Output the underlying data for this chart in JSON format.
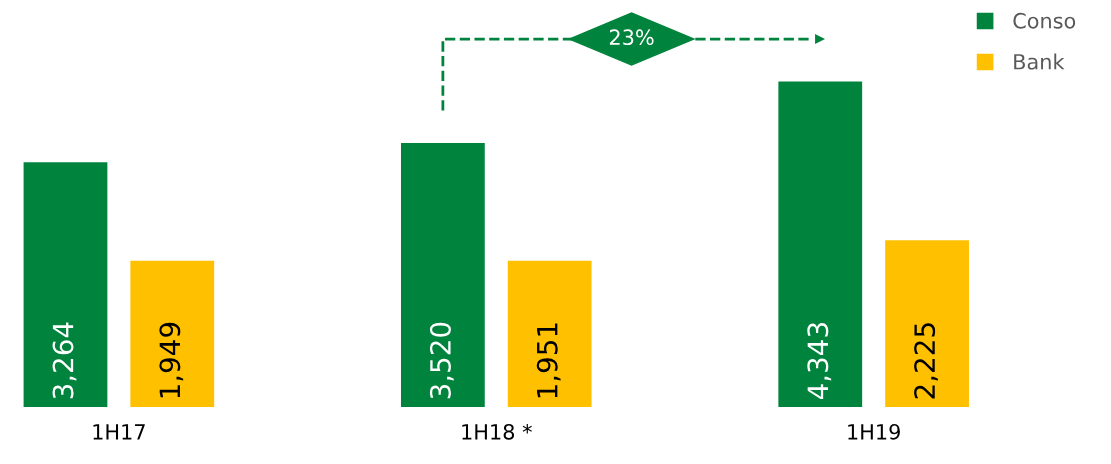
{
  "chart_data": {
    "type": "bar",
    "categories": [
      "1H17",
      "1H18 *",
      "1H19"
    ],
    "series": [
      {
        "name": "Conso",
        "color": "#00843d",
        "values": [
          3264,
          3520,
          4343
        ],
        "value_labels": [
          "3,264",
          "3,520",
          "4,343"
        ]
      },
      {
        "name": "Bank",
        "color": "#ffc000",
        "values": [
          1949,
          1951,
          2225
        ],
        "value_labels": [
          "1,949",
          "1,951",
          "2,225"
        ]
      }
    ],
    "legend": "top right",
    "grid": false,
    "annotations": [
      "23%"
    ]
  }
}
